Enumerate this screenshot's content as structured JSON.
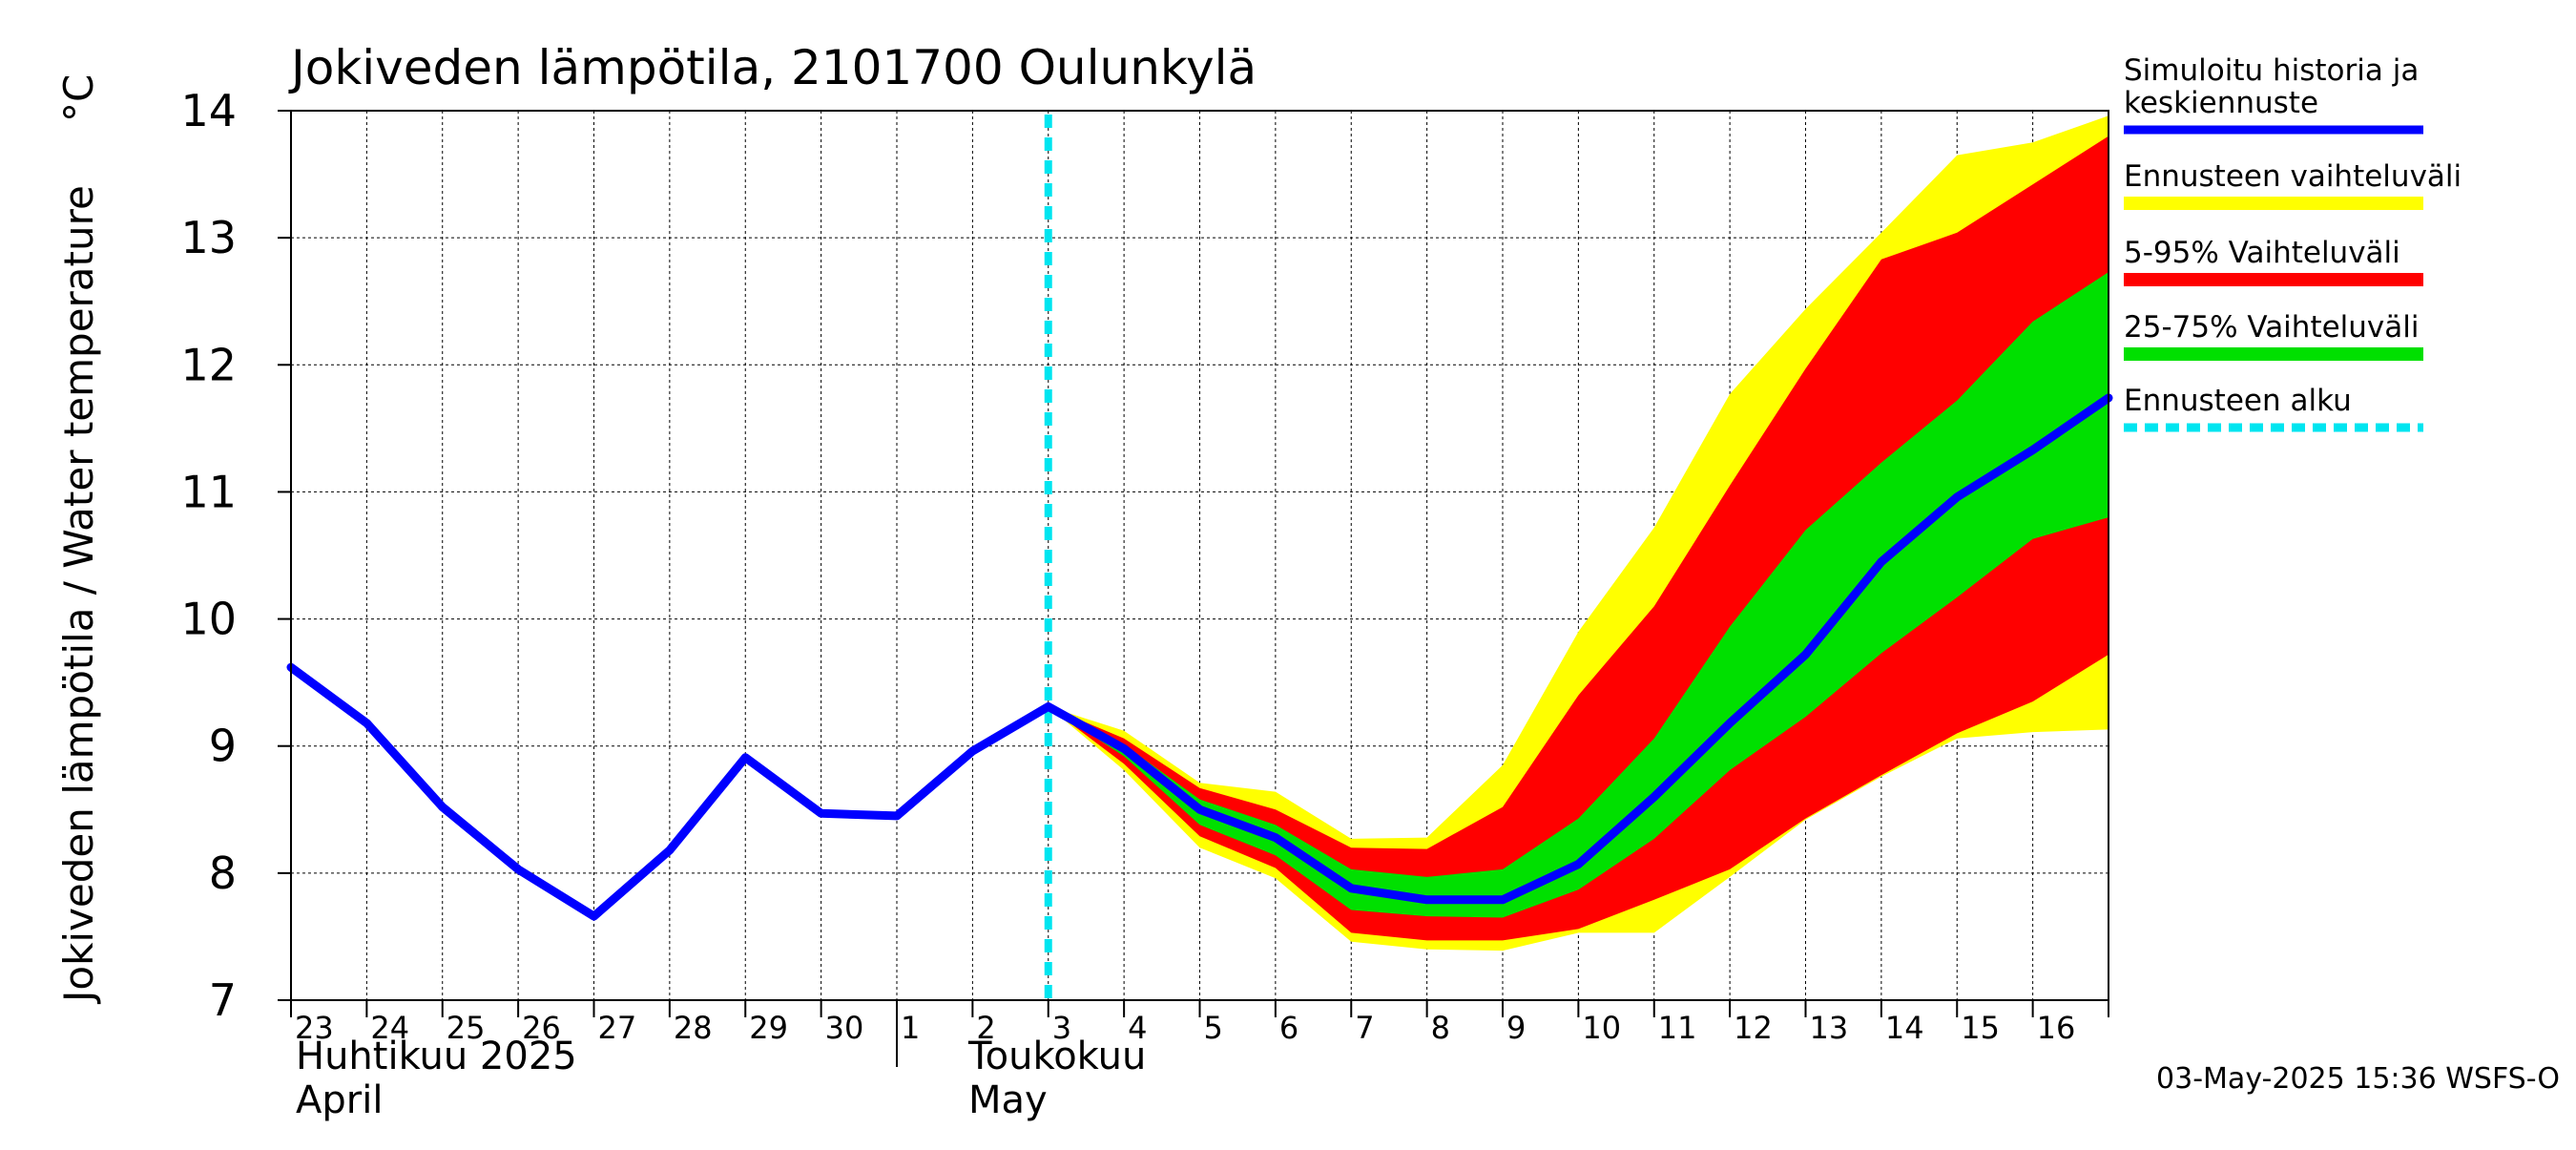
{
  "chart_data": {
    "type": "area",
    "title": "Jokiveden lämpötila, 2101700 Oulunkylä",
    "ylabel": "Jokiveden lämpötila / Water temperature",
    "yunit": "°C",
    "ylim": [
      7,
      14
    ],
    "yticks": [
      "7",
      "8",
      "9",
      "10",
      "11",
      "12",
      "13",
      "14"
    ],
    "xlim": [
      "2025-04-23",
      "2025-05-17"
    ],
    "xtick_labels": [
      "23",
      "24",
      "25",
      "26",
      "27",
      "28",
      "29",
      "30",
      "1",
      "2",
      "3",
      "4",
      "5",
      "6",
      "7",
      "8",
      "9",
      "10",
      "11",
      "12",
      "13",
      "14",
      "15",
      "16"
    ],
    "month_labels": [
      {
        "fi": "Huhtikuu  2025",
        "en": "April"
      },
      {
        "fi": "Toukokuu",
        "en": "May"
      }
    ],
    "grid": true,
    "legend_position": "right",
    "forecast_start": "2025-05-03",
    "series": [
      {
        "name": "Simuloitu historia ja keskiennuste",
        "color": "#0000ff",
        "x": [
          "2025-04-23",
          "2025-04-24",
          "2025-04-25",
          "2025-04-26",
          "2025-04-27",
          "2025-04-28",
          "2025-04-29",
          "2025-04-30",
          "2025-05-01",
          "2025-05-02",
          "2025-05-03",
          "2025-05-04",
          "2025-05-05",
          "2025-05-06",
          "2025-05-07",
          "2025-05-08",
          "2025-05-09",
          "2025-05-10",
          "2025-05-11",
          "2025-05-12",
          "2025-05-13",
          "2025-05-14",
          "2025-05-15",
          "2025-05-16",
          "2025-05-17"
        ],
        "y": [
          9.62,
          9.18,
          8.52,
          8.03,
          7.66,
          8.18,
          8.91,
          8.47,
          8.45,
          8.96,
          9.31,
          8.98,
          8.5,
          8.28,
          7.88,
          7.79,
          7.79,
          8.07,
          8.6,
          9.18,
          9.72,
          10.45,
          10.96,
          11.33,
          11.74
        ]
      },
      {
        "name": "Ennusteen vaihteluväli",
        "color": "#ffff00",
        "x": [
          "2025-05-03",
          "2025-05-04",
          "2025-05-05",
          "2025-05-06",
          "2025-05-07",
          "2025-05-08",
          "2025-05-09",
          "2025-05-10",
          "2025-05-11",
          "2025-05-12",
          "2025-05-13",
          "2025-05-14",
          "2025-05-15",
          "2025-05-16",
          "2025-05-17"
        ],
        "low": [
          9.31,
          8.81,
          8.2,
          7.96,
          7.46,
          7.4,
          7.39,
          7.53,
          7.53,
          7.97,
          8.42,
          8.76,
          9.06,
          9.11,
          9.13
        ],
        "high": [
          9.31,
          9.12,
          8.71,
          8.64,
          8.27,
          8.28,
          8.85,
          9.9,
          10.72,
          11.77,
          12.44,
          13.04,
          13.65,
          13.75,
          13.96
        ]
      },
      {
        "name": "5-95% Vaihteluväli",
        "color": "#ff0000",
        "x": [
          "2025-05-03",
          "2025-05-04",
          "2025-05-05",
          "2025-05-06",
          "2025-05-07",
          "2025-05-08",
          "2025-05-09",
          "2025-05-10",
          "2025-05-11",
          "2025-05-12",
          "2025-05-13",
          "2025-05-14",
          "2025-05-15",
          "2025-05-16",
          "2025-05-17"
        ],
        "low": [
          9.31,
          8.86,
          8.29,
          8.04,
          7.53,
          7.47,
          7.47,
          7.56,
          7.79,
          8.03,
          8.43,
          8.77,
          9.1,
          9.35,
          9.72
        ],
        "high": [
          9.31,
          9.06,
          8.67,
          8.5,
          8.2,
          8.19,
          8.52,
          9.4,
          10.1,
          11.05,
          11.97,
          12.83,
          13.04,
          13.42,
          13.8
        ]
      },
      {
        "name": "25-75% Vaihteluväli",
        "color": "#00e000",
        "x": [
          "2025-05-03",
          "2025-05-04",
          "2025-05-05",
          "2025-05-06",
          "2025-05-07",
          "2025-05-08",
          "2025-05-09",
          "2025-05-10",
          "2025-05-11",
          "2025-05-12",
          "2025-05-13",
          "2025-05-14",
          "2025-05-15",
          "2025-05-16",
          "2025-05-17"
        ],
        "low": [
          9.31,
          8.92,
          8.38,
          8.14,
          7.71,
          7.66,
          7.65,
          7.87,
          8.27,
          8.81,
          9.23,
          9.73,
          10.17,
          10.63,
          10.8
        ],
        "high": [
          9.31,
          9.01,
          8.58,
          8.38,
          8.03,
          7.97,
          8.03,
          8.43,
          9.06,
          9.94,
          10.7,
          11.23,
          11.72,
          12.34,
          12.73
        ]
      },
      {
        "name": "Ennusteen alku",
        "color": "#00e5f0"
      }
    ]
  },
  "footer": "03-May-2025 15:36 WSFS-O"
}
